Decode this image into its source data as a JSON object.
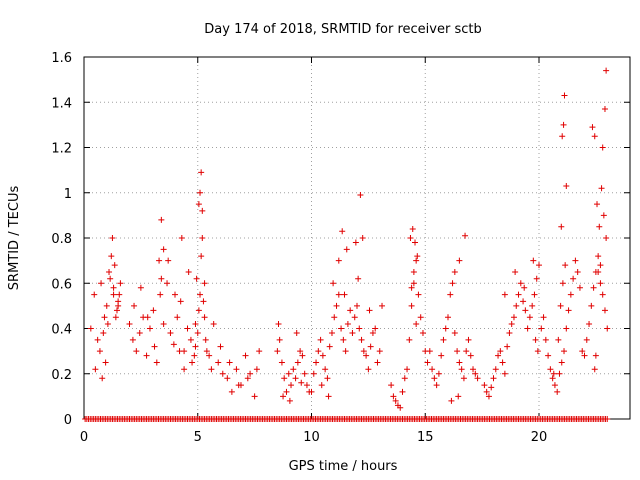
{
  "chart_data": {
    "type": "scatter",
    "title": "Day 174 of 2018, SRMTID for receiver sctb",
    "xlabel": "GPS time / hours",
    "ylabel": "SRMTID / TECUs",
    "xlim": [
      0,
      24
    ],
    "ylim": [
      0,
      1.6
    ],
    "xticks": [
      0,
      5,
      10,
      15,
      20
    ],
    "yticks": [
      0,
      0.2,
      0.4,
      0.6,
      0.8,
      1,
      1.2,
      1.4,
      1.6
    ],
    "xtick_labels": [
      "0",
      "5",
      "10",
      "15",
      "20"
    ],
    "ytick_labels": [
      "0",
      "0.2",
      "0.4",
      "0.6",
      "0.8",
      "1",
      "1.2",
      "1.4",
      "1.6"
    ],
    "grid": true,
    "marker": "+",
    "series": [
      {
        "name": "SRMTID",
        "color": "#e00000",
        "x": [
          0.3,
          0.45,
          0.6,
          0.75,
          0.9,
          1.0,
          1.1,
          1.2,
          1.3,
          1.4,
          1.5,
          1.6,
          0.5,
          0.7,
          0.85,
          1.05,
          1.25,
          1.35,
          1.45,
          1.55,
          0.8,
          0.95,
          1.15,
          1.3,
          1.5,
          2.0,
          2.15,
          2.3,
          2.45,
          2.6,
          2.75,
          2.9,
          3.05,
          3.2,
          3.35,
          3.5,
          3.65,
          3.8,
          3.95,
          4.1,
          4.25,
          4.4,
          4.55,
          4.7,
          4.85,
          2.2,
          2.5,
          2.8,
          3.1,
          3.4,
          3.7,
          4.0,
          4.3,
          4.6,
          4.9,
          3.4,
          3.5,
          3.3,
          4.2,
          4.4,
          4.75,
          4.9,
          5.0,
          5.05,
          5.1,
          5.15,
          5.2,
          5.25,
          5.3,
          5.35,
          5.4,
          5.5,
          5.6,
          5.7,
          5.15,
          5.1,
          5.05,
          5.2,
          4.95,
          5.3,
          5.9,
          6.1,
          6.3,
          6.5,
          6.7,
          6.9,
          7.1,
          7.3,
          7.5,
          7.7,
          6.0,
          6.4,
          6.8,
          7.2,
          7.6,
          8.5,
          8.6,
          8.7,
          8.8,
          8.9,
          9.0,
          9.1,
          9.2,
          9.3,
          9.4,
          9.5,
          9.6,
          9.7,
          9.8,
          9.9,
          8.55,
          8.75,
          9.05,
          9.35,
          9.55,
          10.0,
          10.1,
          10.2,
          10.3,
          10.4,
          10.5,
          10.6,
          10.7,
          10.8,
          10.9,
          11.0,
          11.1,
          11.2,
          11.3,
          11.4,
          11.5,
          11.6,
          11.7,
          11.8,
          11.9,
          12.0,
          12.1,
          12.2,
          12.3,
          12.4,
          12.5,
          12.6,
          12.7,
          12.8,
          12.9,
          13.0,
          13.1,
          10.95,
          11.2,
          11.35,
          11.55,
          11.95,
          12.15,
          12.05,
          12.25,
          10.45,
          10.75,
          11.45,
          12.55,
          13.5,
          13.6,
          13.7,
          13.8,
          13.9,
          14.0,
          14.1,
          14.2,
          14.3,
          14.4,
          14.5,
          14.6,
          14.7,
          14.8,
          14.9,
          15.0,
          14.35,
          14.45,
          14.55,
          14.65,
          14.5,
          14.4,
          14.6,
          15.1,
          15.2,
          15.3,
          15.4,
          15.5,
          15.6,
          15.7,
          15.8,
          15.9,
          16.0,
          16.1,
          16.2,
          16.3,
          16.4,
          16.5,
          16.6,
          16.7,
          16.8,
          16.9,
          17.0,
          17.1,
          17.2,
          17.3,
          16.3,
          16.5,
          16.75,
          16.15,
          16.45,
          17.6,
          17.7,
          17.8,
          17.9,
          18.0,
          18.1,
          18.2,
          18.3,
          18.4,
          18.5,
          18.6,
          18.7,
          18.8,
          18.9,
          19.0,
          19.1,
          19.2,
          19.3,
          19.4,
          19.5,
          19.6,
          19.7,
          19.8,
          19.9,
          20.0,
          18.5,
          18.95,
          19.35,
          19.75,
          19.85,
          19.95,
          20.1,
          20.2,
          20.3,
          20.4,
          20.5,
          20.6,
          20.7,
          20.8,
          20.9,
          21.0,
          21.1,
          21.2,
          21.3,
          21.4,
          21.5,
          21.6,
          21.7,
          21.8,
          20.65,
          20.85,
          20.95,
          21.05,
          21.15,
          21.12,
          21.08,
          21.02,
          20.98,
          21.2,
          21.9,
          22.0,
          22.1,
          22.2,
          22.3,
          22.4,
          22.5,
          22.6,
          22.7,
          22.8,
          22.9,
          23.0,
          22.35,
          22.45,
          22.55,
          22.65,
          22.75,
          22.85,
          22.95,
          22.9,
          22.95,
          22.8,
          22.7,
          22.6,
          22.5,
          22.45
        ],
        "y": [
          0.4,
          0.55,
          0.35,
          0.6,
          0.45,
          0.5,
          0.65,
          0.72,
          0.58,
          0.45,
          0.52,
          0.6,
          0.22,
          0.3,
          0.38,
          0.42,
          0.8,
          0.68,
          0.48,
          0.55,
          0.18,
          0.25,
          0.62,
          0.55,
          0.5,
          0.42,
          0.35,
          0.3,
          0.38,
          0.45,
          0.28,
          0.4,
          0.48,
          0.25,
          0.55,
          0.42,
          0.6,
          0.38,
          0.33,
          0.45,
          0.52,
          0.3,
          0.4,
          0.35,
          0.28,
          0.5,
          0.58,
          0.45,
          0.32,
          0.62,
          0.7,
          0.55,
          0.8,
          0.65,
          0.42,
          0.88,
          0.75,
          0.7,
          0.3,
          0.22,
          0.25,
          0.32,
          0.38,
          0.48,
          0.55,
          0.72,
          0.8,
          0.52,
          0.45,
          0.35,
          0.3,
          0.28,
          0.22,
          0.42,
          1.09,
          1.0,
          0.95,
          0.92,
          0.62,
          0.6,
          0.25,
          0.2,
          0.18,
          0.12,
          0.22,
          0.15,
          0.28,
          0.2,
          0.1,
          0.3,
          0.32,
          0.25,
          0.15,
          0.18,
          0.22,
          0.3,
          0.35,
          0.25,
          0.18,
          0.12,
          0.2,
          0.15,
          0.22,
          0.18,
          0.25,
          0.3,
          0.28,
          0.2,
          0.15,
          0.12,
          0.42,
          0.1,
          0.08,
          0.38,
          0.16,
          0.12,
          0.2,
          0.25,
          0.3,
          0.35,
          0.28,
          0.22,
          0.18,
          0.32,
          0.38,
          0.45,
          0.5,
          0.55,
          0.4,
          0.35,
          0.3,
          0.42,
          0.48,
          0.38,
          0.45,
          0.5,
          0.4,
          0.35,
          0.3,
          0.28,
          0.22,
          0.32,
          0.38,
          0.4,
          0.25,
          0.3,
          0.5,
          0.6,
          0.7,
          0.83,
          0.75,
          0.78,
          0.99,
          0.62,
          0.8,
          0.15,
          0.1,
          0.55,
          0.48,
          0.15,
          0.1,
          0.08,
          0.06,
          0.05,
          0.12,
          0.18,
          0.22,
          0.35,
          0.5,
          0.6,
          0.7,
          0.55,
          0.45,
          0.38,
          0.3,
          0.8,
          0.84,
          0.78,
          0.72,
          0.65,
          0.58,
          0.42,
          0.25,
          0.3,
          0.22,
          0.18,
          0.15,
          0.2,
          0.28,
          0.35,
          0.4,
          0.45,
          0.55,
          0.6,
          0.38,
          0.3,
          0.25,
          0.22,
          0.18,
          0.3,
          0.35,
          0.28,
          0.22,
          0.2,
          0.18,
          0.65,
          0.7,
          0.81,
          0.08,
          0.1,
          0.15,
          0.12,
          0.1,
          0.14,
          0.18,
          0.22,
          0.28,
          0.3,
          0.25,
          0.2,
          0.32,
          0.38,
          0.42,
          0.45,
          0.5,
          0.55,
          0.6,
          0.52,
          0.48,
          0.4,
          0.45,
          0.5,
          0.55,
          0.62,
          0.68,
          0.55,
          0.65,
          0.58,
          0.7,
          0.35,
          0.3,
          0.4,
          0.45,
          0.35,
          0.28,
          0.22,
          0.18,
          0.15,
          0.12,
          0.2,
          0.25,
          0.3,
          0.4,
          0.48,
          0.55,
          0.62,
          0.7,
          0.65,
          0.58,
          0.2,
          0.35,
          0.5,
          0.6,
          0.68,
          1.43,
          1.3,
          1.25,
          0.85,
          1.03,
          0.3,
          0.28,
          0.35,
          0.42,
          0.5,
          0.58,
          0.65,
          0.72,
          0.6,
          0.55,
          0.48,
          0.4,
          1.29,
          1.25,
          0.95,
          0.85,
          1.02,
          0.9,
          0.8,
          1.37,
          1.54,
          1.2,
          0.68,
          0.65,
          0.28,
          0.22
        ]
      }
    ],
    "zero_line_points": "many samples at 0 across the day"
  }
}
